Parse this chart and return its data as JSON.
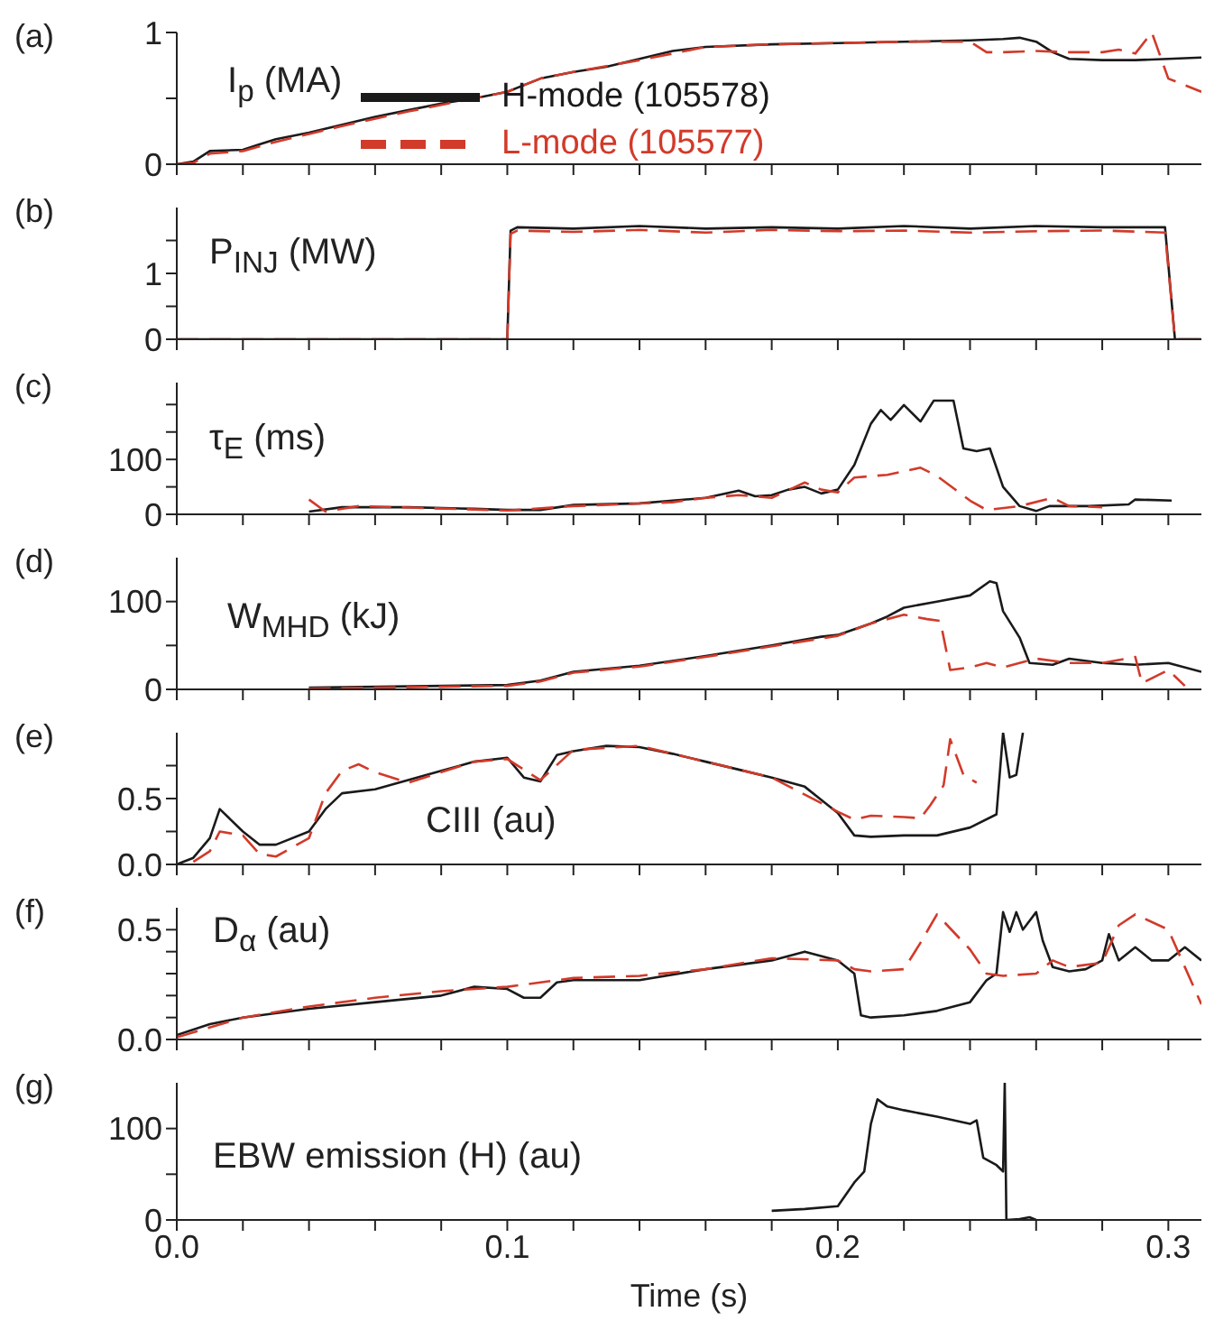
{
  "chart_data": [
    {
      "type": "line",
      "ylabel": "I$_{p}$ (MA)",
      "annotations": [
        "(a)"
      ],
      "xlim": [
        0,
        0.31
      ],
      "xticks": [
        0,
        {
          "value": 0.02,
          "label": null
        },
        {
          "value": 0.04,
          "label": null
        },
        {
          "value": 0.06,
          "label": null
        },
        {
          "value": 0.08,
          "label": null
        },
        0.1,
        {
          "value": 0.12,
          "label": null
        },
        {
          "value": 0.14,
          "label": null
        },
        {
          "value": 0.16,
          "label": null
        },
        {
          "value": 0.18,
          "label": null
        },
        0.2,
        {
          "value": 0.22,
          "label": null
        },
        {
          "value": 0.24,
          "label": null
        },
        {
          "value": 0.26,
          "label": null
        },
        {
          "value": 0.28,
          "label": null
        },
        0.3
      ],
      "ylim": [
        0,
        1
      ],
      "yticks": [
        0,
        {
          "value": 0.5,
          "label": null
        },
        1
      ],
      "tick_labels": "y",
      "legend": "center",
      "series": [
        {
          "name": "H-mode (105578)",
          "color": "#1a1a1a",
          "line_style": "solid",
          "x": [
            0,
            0.005,
            0.01,
            0.02,
            0.025,
            0.03,
            0.04,
            0.05,
            0.06,
            0.07,
            0.08,
            0.09,
            0.1,
            0.105,
            0.11,
            0.12,
            0.13,
            0.14,
            0.15,
            0.16,
            0.18,
            0.2,
            0.22,
            0.24,
            0.25,
            0.255,
            0.26,
            0.265,
            0.27,
            0.28,
            0.29,
            0.3,
            0.31
          ],
          "values": [
            0,
            0.02,
            0.1,
            0.11,
            0.15,
            0.19,
            0.24,
            0.3,
            0.36,
            0.41,
            0.46,
            0.5,
            0.55,
            0.6,
            0.65,
            0.7,
            0.74,
            0.8,
            0.86,
            0.89,
            0.91,
            0.92,
            0.93,
            0.94,
            0.95,
            0.96,
            0.93,
            0.85,
            0.8,
            0.79,
            0.79,
            0.8,
            0.81
          ]
        },
        {
          "name": "L-mode (105577)",
          "color": "#d23a2a",
          "line_style": "dashed",
          "x": [
            0,
            0.005,
            0.01,
            0.02,
            0.03,
            0.04,
            0.05,
            0.07,
            0.09,
            0.1,
            0.11,
            0.12,
            0.14,
            0.16,
            0.18,
            0.2,
            0.22,
            0.24,
            0.245,
            0.25,
            0.26,
            0.27,
            0.28,
            0.285,
            0.29,
            0.295,
            0.3,
            0.31
          ],
          "values": [
            0,
            0.01,
            0.08,
            0.1,
            0.17,
            0.23,
            0.29,
            0.4,
            0.5,
            0.55,
            0.65,
            0.7,
            0.79,
            0.89,
            0.91,
            0.92,
            0.93,
            0.93,
            0.85,
            0.85,
            0.86,
            0.85,
            0.85,
            0.87,
            0.84,
            1.0,
            0.65,
            0.55
          ]
        }
      ]
    },
    {
      "type": "line",
      "ylabel": "P$_{INJ}$ (MW)",
      "annotations": [
        "(b)"
      ],
      "xlim": [
        0,
        0.31
      ],
      "xticks": [
        0,
        {
          "value": 0.02,
          "label": null
        },
        {
          "value": 0.04,
          "label": null
        },
        {
          "value": 0.06,
          "label": null
        },
        {
          "value": 0.08,
          "label": null
        },
        0.1,
        {
          "value": 0.12,
          "label": null
        },
        {
          "value": 0.14,
          "label": null
        },
        {
          "value": 0.16,
          "label": null
        },
        {
          "value": 0.18,
          "label": null
        },
        0.2,
        {
          "value": 0.22,
          "label": null
        },
        {
          "value": 0.24,
          "label": null
        },
        {
          "value": 0.26,
          "label": null
        },
        {
          "value": 0.28,
          "label": null
        },
        0.3
      ],
      "ylim": [
        0,
        2
      ],
      "yticks": [
        0,
        {
          "value": 0.5,
          "label": null
        },
        1,
        {
          "value": 1.5,
          "label": null
        }
      ],
      "tick_labels": "y",
      "series": [
        {
          "color": "#1a1a1a",
          "line_style": "solid",
          "x": [
            0,
            0.1,
            0.101,
            0.103,
            0.12,
            0.14,
            0.16,
            0.18,
            0.2,
            0.22,
            0.24,
            0.26,
            0.28,
            0.299,
            0.302,
            0.31
          ],
          "values": [
            0,
            0,
            1.65,
            1.7,
            1.68,
            1.72,
            1.68,
            1.7,
            1.68,
            1.72,
            1.68,
            1.72,
            1.7,
            1.7,
            0,
            0
          ]
        },
        {
          "color": "#d23a2a",
          "line_style": "dashed",
          "x": [
            0,
            0.1,
            0.101,
            0.103,
            0.12,
            0.14,
            0.16,
            0.18,
            0.2,
            0.22,
            0.24,
            0.26,
            0.28,
            0.299,
            0.302,
            0.31
          ],
          "values": [
            0,
            0,
            1.6,
            1.65,
            1.63,
            1.66,
            1.62,
            1.66,
            1.64,
            1.65,
            1.62,
            1.64,
            1.65,
            1.62,
            0,
            0
          ]
        }
      ]
    },
    {
      "type": "line",
      "ylabel": "τ$_{E}$ (ms)",
      "annotations": [
        "(c)"
      ],
      "xlim": [
        0,
        0.31
      ],
      "xticks": [
        0,
        {
          "value": 0.02,
          "label": null
        },
        {
          "value": 0.04,
          "label": null
        },
        {
          "value": 0.06,
          "label": null
        },
        {
          "value": 0.08,
          "label": null
        },
        0.1,
        {
          "value": 0.12,
          "label": null
        },
        {
          "value": 0.14,
          "label": null
        },
        {
          "value": 0.16,
          "label": null
        },
        {
          "value": 0.18,
          "label": null
        },
        0.2,
        {
          "value": 0.22,
          "label": null
        },
        {
          "value": 0.24,
          "label": null
        },
        {
          "value": 0.26,
          "label": null
        },
        {
          "value": 0.28,
          "label": null
        },
        0.3
      ],
      "ylim": [
        0,
        240
      ],
      "yticks": [
        0,
        {
          "value": 50,
          "label": null
        },
        100,
        {
          "value": 150,
          "label": null
        },
        {
          "value": 200,
          "label": null
        }
      ],
      "tick_labels": "y",
      "series": [
        {
          "color": "#1a1a1a",
          "line_style": "solid",
          "x": [
            0.04,
            0.05,
            0.07,
            0.09,
            0.1,
            0.11,
            0.12,
            0.14,
            0.15,
            0.16,
            0.17,
            0.175,
            0.18,
            0.185,
            0.19,
            0.195,
            0.2,
            0.205,
            0.21,
            0.213,
            0.216,
            0.22,
            0.225,
            0.229,
            0.235,
            0.238,
            0.242,
            0.246,
            0.25,
            0.255,
            0.26,
            0.264,
            0.276,
            0.288,
            0.29,
            0.301
          ],
          "values": [
            5,
            13,
            13,
            10,
            8,
            8,
            17,
            20,
            25,
            30,
            43,
            33,
            35,
            45,
            50,
            38,
            45,
            90,
            165,
            190,
            172,
            199,
            169,
            207,
            207,
            120,
            115,
            120,
            50,
            15,
            6,
            15,
            15,
            18,
            27,
            25
          ]
        },
        {
          "color": "#d23a2a",
          "line_style": "dashed",
          "x": [
            0.04,
            0.045,
            0.055,
            0.1,
            0.12,
            0.15,
            0.16,
            0.17,
            0.18,
            0.19,
            0.195,
            0.2,
            0.205,
            0.215,
            0.225,
            0.23,
            0.24,
            0.245,
            0.255,
            0.265,
            0.27,
            0.28
          ],
          "values": [
            27,
            5,
            15,
            7,
            15,
            22,
            30,
            35,
            30,
            58,
            45,
            40,
            67,
            72,
            85,
            70,
            25,
            8,
            15,
            30,
            15,
            13
          ]
        }
      ]
    },
    {
      "type": "line",
      "ylabel": "W$_{MHD}$ (kJ)",
      "annotations": [
        "(d)"
      ],
      "xlim": [
        0,
        0.31
      ],
      "xticks": [
        0,
        {
          "value": 0.02,
          "label": null
        },
        {
          "value": 0.04,
          "label": null
        },
        {
          "value": 0.06,
          "label": null
        },
        {
          "value": 0.08,
          "label": null
        },
        0.1,
        {
          "value": 0.12,
          "label": null
        },
        {
          "value": 0.14,
          "label": null
        },
        {
          "value": 0.16,
          "label": null
        },
        {
          "value": 0.18,
          "label": null
        },
        0.2,
        {
          "value": 0.22,
          "label": null
        },
        {
          "value": 0.24,
          "label": null
        },
        {
          "value": 0.26,
          "label": null
        },
        {
          "value": 0.28,
          "label": null
        },
        0.3
      ],
      "ylim": [
        0,
        150
      ],
      "yticks": [
        0,
        {
          "value": 50,
          "label": null
        },
        100
      ],
      "tick_labels": "y",
      "series": [
        {
          "color": "#1a1a1a",
          "line_style": "solid",
          "x": [
            0.04,
            0.1,
            0.11,
            0.12,
            0.14,
            0.16,
            0.18,
            0.195,
            0.2,
            0.21,
            0.215,
            0.22,
            0.23,
            0.24,
            0.246,
            0.248,
            0.25,
            0.255,
            0.258,
            0.265,
            0.27,
            0.28,
            0.29,
            0.3,
            0.31
          ],
          "values": [
            2,
            5,
            10,
            20,
            27,
            38,
            50,
            60,
            62,
            75,
            83,
            93,
            100,
            107,
            123,
            121,
            89,
            59,
            30,
            28,
            35,
            30,
            28,
            30,
            20
          ]
        },
        {
          "color": "#d23a2a",
          "line_style": "dashed",
          "x": [
            0.04,
            0.1,
            0.11,
            0.12,
            0.14,
            0.16,
            0.18,
            0.2,
            0.21,
            0.22,
            0.227,
            0.231,
            0.234,
            0.24,
            0.245,
            0.25,
            0.26,
            0.27,
            0.28,
            0.29,
            0.292,
            0.3,
            0.305
          ],
          "values": [
            1,
            4,
            9,
            19,
            26,
            37,
            49,
            61,
            75,
            85,
            80,
            78,
            22,
            25,
            30,
            25,
            35,
            30,
            30,
            37,
            7,
            22,
            4
          ]
        }
      ]
    },
    {
      "type": "line",
      "ylabel": "CIII (au)",
      "annotations": [
        "(e)"
      ],
      "xlim": [
        0,
        0.31
      ],
      "xticks": [
        0,
        {
          "value": 0.02,
          "label": null
        },
        {
          "value": 0.04,
          "label": null
        },
        {
          "value": 0.06,
          "label": null
        },
        {
          "value": 0.08,
          "label": null
        },
        0.1,
        {
          "value": 0.12,
          "label": null
        },
        {
          "value": 0.14,
          "label": null
        },
        {
          "value": 0.16,
          "label": null
        },
        {
          "value": 0.18,
          "label": null
        },
        0.2,
        {
          "value": 0.22,
          "label": null
        },
        {
          "value": 0.24,
          "label": null
        },
        {
          "value": 0.26,
          "label": null
        },
        {
          "value": 0.28,
          "label": null
        },
        0.3
      ],
      "ylim": [
        0,
        1
      ],
      "yticks": [
        {
          "value": 0,
          "label": "0.0"
        },
        {
          "value": 0.25,
          "label": null
        },
        0.5,
        {
          "value": 0.75,
          "label": null
        }
      ],
      "tick_labels": "y",
      "series": [
        {
          "color": "#1a1a1a",
          "line_style": "solid",
          "x": [
            0,
            0.005,
            0.01,
            0.013,
            0.02,
            0.025,
            0.03,
            0.04,
            0.045,
            0.05,
            0.06,
            0.07,
            0.08,
            0.09,
            0.1,
            0.105,
            0.11,
            0.115,
            0.12,
            0.13,
            0.14,
            0.15,
            0.16,
            0.17,
            0.18,
            0.19,
            0.195,
            0.2,
            0.205,
            0.21,
            0.22,
            0.23,
            0.24,
            0.248,
            0.25,
            0.252,
            0.254,
            0.256
          ],
          "values": [
            0,
            0.05,
            0.2,
            0.42,
            0.25,
            0.15,
            0.15,
            0.25,
            0.42,
            0.54,
            0.57,
            0.64,
            0.71,
            0.78,
            0.81,
            0.66,
            0.63,
            0.83,
            0.86,
            0.9,
            0.89,
            0.84,
            0.78,
            0.72,
            0.66,
            0.59,
            0.49,
            0.39,
            0.22,
            0.21,
            0.22,
            0.22,
            0.28,
            0.38,
            1.0,
            0.66,
            0.68,
            1.0
          ]
        },
        {
          "color": "#d23a2a",
          "line_style": "dashed",
          "x": [
            0.005,
            0.01,
            0.013,
            0.02,
            0.025,
            0.03,
            0.04,
            0.045,
            0.05,
            0.055,
            0.06,
            0.07,
            0.08,
            0.09,
            0.1,
            0.11,
            0.12,
            0.14,
            0.16,
            0.18,
            0.2,
            0.205,
            0.21,
            0.22,
            0.225,
            0.228,
            0.232,
            0.234,
            0.238,
            0.242
          ],
          "values": [
            0.02,
            0.1,
            0.25,
            0.22,
            0.08,
            0.06,
            0.2,
            0.54,
            0.71,
            0.76,
            0.7,
            0.62,
            0.7,
            0.78,
            0.8,
            0.64,
            0.87,
            0.9,
            0.78,
            0.66,
            0.4,
            0.34,
            0.37,
            0.36,
            0.35,
            0.45,
            0.6,
            0.95,
            0.68,
            0.62
          ]
        }
      ]
    },
    {
      "type": "line",
      "ylabel": "D$_{α}$ (au)",
      "annotations": [
        "(f)"
      ],
      "xlim": [
        0,
        0.31
      ],
      "xticks": [
        0,
        {
          "value": 0.02,
          "label": null
        },
        {
          "value": 0.04,
          "label": null
        },
        {
          "value": 0.06,
          "label": null
        },
        {
          "value": 0.08,
          "label": null
        },
        0.1,
        {
          "value": 0.12,
          "label": null
        },
        {
          "value": 0.14,
          "label": null
        },
        {
          "value": 0.16,
          "label": null
        },
        {
          "value": 0.18,
          "label": null
        },
        0.2,
        {
          "value": 0.22,
          "label": null
        },
        {
          "value": 0.24,
          "label": null
        },
        {
          "value": 0.26,
          "label": null
        },
        {
          "value": 0.28,
          "label": null
        },
        0.3
      ],
      "ylim": [
        0,
        0.6
      ],
      "yticks": [
        {
          "value": 0,
          "label": "0.0"
        },
        {
          "value": 0.1,
          "label": null
        },
        {
          "value": 0.2,
          "label": null
        },
        {
          "value": 0.3,
          "label": null
        },
        {
          "value": 0.4,
          "label": null
        },
        0.5
      ],
      "tick_labels": "y",
      "series": [
        {
          "color": "#1a1a1a",
          "line_style": "solid",
          "x": [
            0,
            0.01,
            0.02,
            0.04,
            0.06,
            0.08,
            0.09,
            0.1,
            0.105,
            0.11,
            0.115,
            0.12,
            0.14,
            0.16,
            0.18,
            0.19,
            0.2,
            0.205,
            0.207,
            0.21,
            0.22,
            0.23,
            0.24,
            0.245,
            0.248,
            0.25,
            0.252,
            0.254,
            0.256,
            0.26,
            0.262,
            0.265,
            0.27,
            0.275,
            0.28,
            0.282,
            0.285,
            0.29,
            0.295,
            0.3,
            0.305,
            0.31
          ],
          "values": [
            0.02,
            0.07,
            0.1,
            0.14,
            0.17,
            0.2,
            0.24,
            0.23,
            0.19,
            0.19,
            0.26,
            0.27,
            0.27,
            0.32,
            0.36,
            0.4,
            0.36,
            0.3,
            0.11,
            0.1,
            0.11,
            0.13,
            0.17,
            0.27,
            0.3,
            0.58,
            0.49,
            0.58,
            0.5,
            0.58,
            0.45,
            0.33,
            0.31,
            0.32,
            0.36,
            0.48,
            0.36,
            0.42,
            0.36,
            0.36,
            0.42,
            0.36
          ]
        },
        {
          "color": "#d23a2a",
          "line_style": "dashed",
          "x": [
            0,
            0.02,
            0.04,
            0.06,
            0.08,
            0.1,
            0.12,
            0.14,
            0.16,
            0.18,
            0.2,
            0.205,
            0.21,
            0.22,
            0.225,
            0.23,
            0.24,
            0.245,
            0.25,
            0.26,
            0.265,
            0.27,
            0.28,
            0.285,
            0.29,
            0.3,
            0.31
          ],
          "values": [
            0.01,
            0.1,
            0.15,
            0.19,
            0.22,
            0.24,
            0.28,
            0.29,
            0.32,
            0.37,
            0.36,
            0.32,
            0.31,
            0.32,
            0.44,
            0.57,
            0.41,
            0.3,
            0.29,
            0.3,
            0.36,
            0.33,
            0.35,
            0.52,
            0.57,
            0.5,
            0.16
          ]
        }
      ]
    },
    {
      "type": "line",
      "ylabel": "EBW emission (H) (au)",
      "xlabel": "Time (s)",
      "annotations": [
        "(g)"
      ],
      "xlim": [
        0,
        0.31
      ],
      "xticks": [
        {
          "value": 0,
          "label": "0.0"
        },
        {
          "value": 0.02,
          "label": null
        },
        {
          "value": 0.04,
          "label": null
        },
        {
          "value": 0.06,
          "label": null
        },
        {
          "value": 0.08,
          "label": null
        },
        0.1,
        {
          "value": 0.12,
          "label": null
        },
        {
          "value": 0.14,
          "label": null
        },
        {
          "value": 0.16,
          "label": null
        },
        {
          "value": 0.18,
          "label": null
        },
        0.2,
        {
          "value": 0.22,
          "label": null
        },
        {
          "value": 0.24,
          "label": null
        },
        {
          "value": 0.26,
          "label": null
        },
        {
          "value": 0.28,
          "label": null
        },
        0.3
      ],
      "ylim": [
        0,
        150
      ],
      "yticks": [
        0,
        {
          "value": 50,
          "label": null
        },
        100
      ],
      "series": [
        {
          "color": "#1a1a1a",
          "line_style": "solid",
          "x": [
            0.18,
            0.19,
            0.2,
            0.205,
            0.208,
            0.21,
            0.212,
            0.215,
            0.22,
            0.23,
            0.24,
            0.242,
            0.244,
            0.248,
            0.25,
            0.2505,
            0.251,
            0.255,
            0.258,
            0.26
          ],
          "values": [
            10,
            12,
            15,
            41,
            53,
            105,
            132,
            124,
            120,
            113,
            105,
            109,
            68,
            60,
            53,
            150,
            0,
            1,
            3,
            0
          ]
        }
      ]
    }
  ]
}
